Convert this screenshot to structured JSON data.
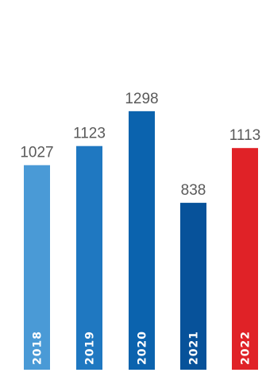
{
  "chart_data": {
    "type": "bar",
    "categories": [
      "2018",
      "2019",
      "2020",
      "2021",
      "2022"
    ],
    "values": [
      1027,
      1123,
      1298,
      838,
      1113
    ],
    "value_labels": [
      "1027",
      "1123",
      "1298",
      "838",
      "1113"
    ],
    "colors": [
      "#4a9ad6",
      "#1f78c1",
      "#0b63ae",
      "#07529a",
      "#e02227"
    ],
    "title": "",
    "xlabel": "",
    "ylabel": "",
    "ylim": [
      0,
      1450
    ],
    "grid": false,
    "legend": "none"
  }
}
